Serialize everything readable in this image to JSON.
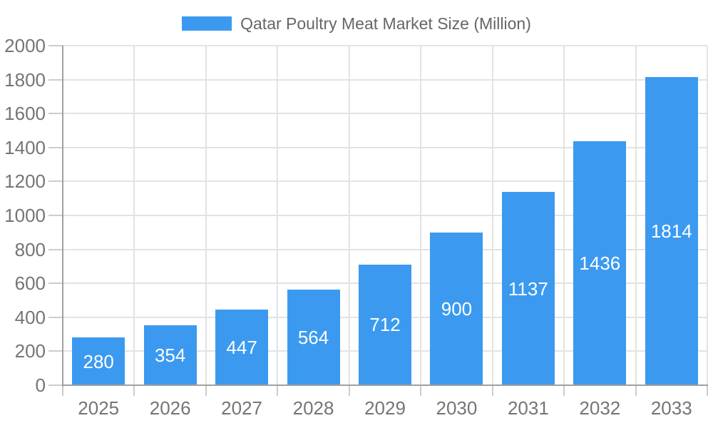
{
  "chart_data": {
    "type": "bar",
    "title": "Qatar Poultry Meat Market Size (Million)",
    "legend_position": "top",
    "categories": [
      "2025",
      "2026",
      "2027",
      "2028",
      "2029",
      "2030",
      "2031",
      "2032",
      "2033"
    ],
    "values": [
      280,
      354,
      447,
      564,
      712,
      900,
      1137,
      1436,
      1814
    ],
    "value_labels": [
      "280",
      "354",
      "447",
      "564",
      "712",
      "900",
      "1137",
      "1436",
      "1814"
    ],
    "ylim": [
      0,
      2000
    ],
    "y_tick_step": 200,
    "y_tick_labels": [
      "0",
      "200",
      "400",
      "600",
      "800",
      "1000",
      "1200",
      "1400",
      "1600",
      "1800",
      "2000"
    ],
    "xlabel": "",
    "ylabel": "",
    "grid": true,
    "colors": {
      "bar": "#3b9af0",
      "value_label": "#ffffff",
      "axis_label": "#757575",
      "legend_text": "#666666",
      "gridline": "#e3e3e3",
      "tick": "#cccccc",
      "axis_border": "#a0a0a0",
      "background": "#ffffff"
    }
  }
}
